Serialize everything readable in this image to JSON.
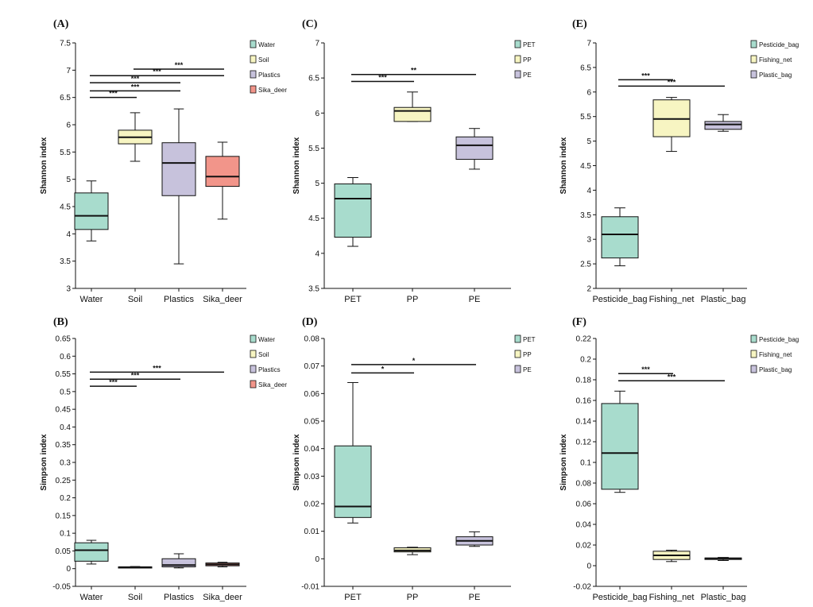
{
  "chart_data": [
    {
      "panel": "(A)",
      "type": "box",
      "ylabel": "Shannon index",
      "ylim": [
        3,
        7.5
      ],
      "yticks": [
        "3",
        "3.5",
        "4",
        "4.5",
        "5",
        "5.5",
        "6",
        "6.5",
        "7",
        "7.5"
      ],
      "categories": [
        "Water",
        "Soil",
        "Plastics",
        "Sika_deer"
      ],
      "legend": [
        "Water",
        "Soil",
        "Plastics",
        "Sika_deer"
      ],
      "colors": [
        "#a8dccd",
        "#f7f5c2",
        "#c7c2dc",
        "#f2958a"
      ],
      "boxes": [
        {
          "min": 3.87,
          "q1": 4.08,
          "median": 4.33,
          "q3": 4.75,
          "max": 4.97
        },
        {
          "min": 5.33,
          "q1": 5.65,
          "median": 5.77,
          "q3": 5.9,
          "max": 6.22
        },
        {
          "min": 3.45,
          "q1": 4.7,
          "median": 5.3,
          "q3": 5.67,
          "max": 6.29
        },
        {
          "min": 4.27,
          "q1": 4.87,
          "median": 5.05,
          "q3": 5.42,
          "max": 5.68
        }
      ],
      "sig": [
        {
          "from": 0,
          "to": 1,
          "label": "***",
          "y": 6.5
        },
        {
          "from": 0,
          "to": 2,
          "label": "***",
          "y": 6.62
        },
        {
          "from": 0,
          "to": 2,
          "label": "***",
          "y": 6.77
        },
        {
          "from": 0,
          "to": 3,
          "label": "***",
          "y": 6.9
        },
        {
          "from": 1,
          "to": 3,
          "label": "***",
          "y": 7.02
        }
      ]
    },
    {
      "panel": "(C)",
      "type": "box",
      "ylabel": "Shannon index",
      "ylim": [
        3.5,
        7
      ],
      "yticks": [
        "3.5",
        "4",
        "4.5",
        "5",
        "5.5",
        "6",
        "6.5",
        "7"
      ],
      "categories": [
        "PET",
        "PP",
        "PE"
      ],
      "legend": [
        "PET",
        "PP",
        "PE"
      ],
      "colors": [
        "#a8dccd",
        "#f7f5c2",
        "#c7c2dc"
      ],
      "boxes": [
        {
          "min": 4.1,
          "q1": 4.23,
          "median": 4.78,
          "q3": 4.99,
          "max": 5.08
        },
        {
          "min": 5.88,
          "q1": 5.88,
          "median": 6.03,
          "q3": 6.08,
          "max": 6.3
        },
        {
          "min": 5.2,
          "q1": 5.34,
          "median": 5.54,
          "q3": 5.66,
          "max": 5.78
        }
      ],
      "sig": [
        {
          "from": 0,
          "to": 1,
          "label": "***",
          "y": 6.45
        },
        {
          "from": 0,
          "to": 2,
          "label": "**",
          "y": 6.55
        }
      ]
    },
    {
      "panel": "(E)",
      "type": "box",
      "ylabel": "Shannon index",
      "ylim": [
        2,
        7
      ],
      "yticks": [
        "2",
        "2.5",
        "3",
        "3.5",
        "4",
        "4.5",
        "5",
        "5.5",
        "6",
        "6.5",
        "7"
      ],
      "categories": [
        "Pesticide_bag",
        "Fishing_net",
        "Plastic_bag"
      ],
      "legend": [
        "Pesticide_bag",
        "Fishing_net",
        "Plastic_bag"
      ],
      "colors": [
        "#a8dccd",
        "#f7f5c2",
        "#c7c2dc"
      ],
      "boxes": [
        {
          "min": 2.46,
          "q1": 2.62,
          "median": 3.1,
          "q3": 3.46,
          "max": 3.64
        },
        {
          "min": 4.79,
          "q1": 5.09,
          "median": 5.45,
          "q3": 5.84,
          "max": 5.89
        },
        {
          "min": 5.2,
          "q1": 5.24,
          "median": 5.34,
          "q3": 5.4,
          "max": 5.54
        }
      ],
      "sig": [
        {
          "from": 0,
          "to": 1,
          "label": "***",
          "y": 6.25
        },
        {
          "from": 0,
          "to": 2,
          "label": "***",
          "y": 6.12
        }
      ]
    },
    {
      "panel": "(B)",
      "type": "box",
      "ylabel": "Simpson index",
      "ylim": [
        -0.05,
        0.65
      ],
      "yticks": [
        "-0.05",
        "0",
        "0.05",
        "0.1",
        "0.15",
        "0.2",
        "0.25",
        "0.3",
        "0.35",
        "0.4",
        "0.45",
        "0.5",
        "0.55",
        "0.6",
        "0.65"
      ],
      "categories": [
        "Water",
        "Soil",
        "Plastics",
        "Sika_deer"
      ],
      "legend": [
        "Water",
        "Soil",
        "Plastics",
        "Sika_deer"
      ],
      "colors": [
        "#a8dccd",
        "#f7f5c2",
        "#c7c2dc",
        "#f2958a"
      ],
      "boxes": [
        {
          "min": 0.013,
          "q1": 0.021,
          "median": 0.052,
          "q3": 0.073,
          "max": 0.08
        },
        {
          "min": 0.002,
          "q1": 0.003,
          "median": 0.004,
          "q3": 0.005,
          "max": 0.006
        },
        {
          "min": 0.002,
          "q1": 0.005,
          "median": 0.01,
          "q3": 0.028,
          "max": 0.042
        },
        {
          "min": 0.005,
          "q1": 0.008,
          "median": 0.012,
          "q3": 0.016,
          "max": 0.018
        }
      ],
      "sig": [
        {
          "from": 0,
          "to": 1,
          "label": "***",
          "y": 0.515
        },
        {
          "from": 0,
          "to": 2,
          "label": "***",
          "y": 0.535
        },
        {
          "from": 0,
          "to": 3,
          "label": "***",
          "y": 0.555
        }
      ]
    },
    {
      "panel": "(D)",
      "type": "box",
      "ylabel": "Simpson index",
      "ylim": [
        -0.01,
        0.08
      ],
      "yticks": [
        "-0.01",
        "0",
        "0.01",
        "0.02",
        "0.03",
        "0.04",
        "0.05",
        "0.06",
        "0.07",
        "0.08"
      ],
      "categories": [
        "PET",
        "PP",
        "PE"
      ],
      "legend": [
        "PET",
        "PP",
        "PE"
      ],
      "colors": [
        "#a8dccd",
        "#f7f5c2",
        "#c7c2dc"
      ],
      "boxes": [
        {
          "min": 0.013,
          "q1": 0.015,
          "median": 0.019,
          "q3": 0.041,
          "max": 0.064
        },
        {
          "min": 0.0015,
          "q1": 0.0025,
          "median": 0.003,
          "q3": 0.004,
          "max": 0.0042
        },
        {
          "min": 0.0045,
          "q1": 0.005,
          "median": 0.0065,
          "q3": 0.008,
          "max": 0.0098
        }
      ],
      "sig": [
        {
          "from": 0,
          "to": 1,
          "label": "*",
          "y": 0.0675
        },
        {
          "from": 0,
          "to": 2,
          "label": "*",
          "y": 0.0705
        }
      ]
    },
    {
      "panel": "(F)",
      "type": "box",
      "ylabel": "Simpson index",
      "ylim": [
        -0.02,
        0.22
      ],
      "yticks": [
        "-0.02",
        "0",
        "0.02",
        "0.04",
        "0.06",
        "0.08",
        "0.1",
        "0.12",
        "0.14",
        "0.16",
        "0.18",
        "0.2",
        "0.22"
      ],
      "categories": [
        "Pesticide_bag",
        "Fishing_net",
        "Plastic_bag"
      ],
      "legend": [
        "Pesticide_bag",
        "Fishing_net",
        "Plastic_bag"
      ],
      "colors": [
        "#a8dccd",
        "#f7f5c2",
        "#c7c2dc"
      ],
      "boxes": [
        {
          "min": 0.071,
          "q1": 0.074,
          "median": 0.109,
          "q3": 0.157,
          "max": 0.169
        },
        {
          "min": 0.004,
          "q1": 0.006,
          "median": 0.01,
          "q3": 0.014,
          "max": 0.015
        },
        {
          "min": 0.005,
          "q1": 0.006,
          "median": 0.007,
          "q3": 0.0075,
          "max": 0.008
        }
      ],
      "sig": [
        {
          "from": 0,
          "to": 1,
          "label": "***",
          "y": 0.186
        },
        {
          "from": 0,
          "to": 2,
          "label": "***",
          "y": 0.179
        }
      ]
    }
  ]
}
